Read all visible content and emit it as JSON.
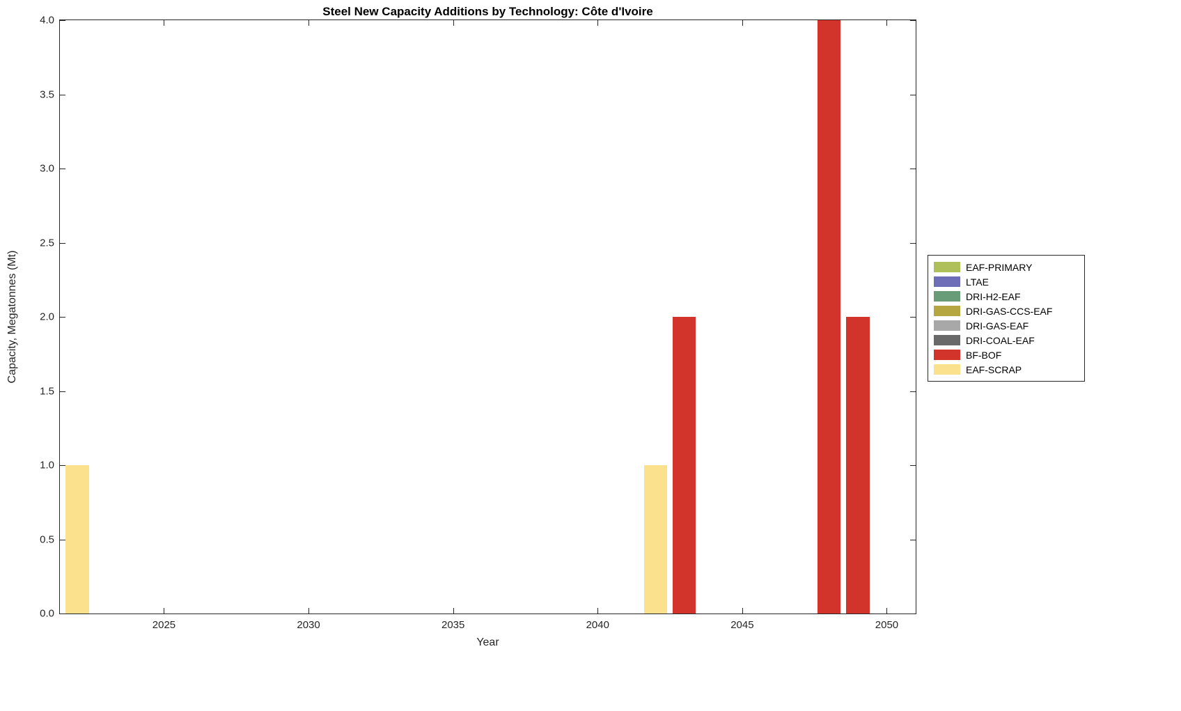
{
  "title": "Steel New Capacity Additions by Technology: Côte d'Ivoire",
  "chart_data": {
    "type": "bar",
    "title": "Steel New Capacity Additions by Technology: Côte d'Ivoire",
    "xlabel": "Year",
    "ylabel": "Capacity, Megatonnes (Mt)",
    "x_range": [
      2021.4,
      2051.0
    ],
    "y_range": [
      0,
      4
    ],
    "x_ticks": [
      2025,
      2030,
      2035,
      2040,
      2045,
      2050
    ],
    "y_ticks": [
      0,
      0.5,
      1,
      1.5,
      2,
      2.5,
      3,
      3.5,
      4
    ],
    "y_tick_labels": [
      "0.0",
      "0.5",
      "1.0",
      "1.5",
      "2.0",
      "2.5",
      "3.0",
      "3.5",
      "4.0"
    ],
    "bar_width_years": 0.8,
    "grid": false,
    "legend_position": "right-outside",
    "legend": [
      {
        "name": "EAF-PRIMARY",
        "color": "#AFC05A"
      },
      {
        "name": "LTAE",
        "color": "#6E6DB8"
      },
      {
        "name": "DRI-H2-EAF",
        "color": "#689B78"
      },
      {
        "name": "DRI-GAS-CCS-EAF",
        "color": "#B5A642"
      },
      {
        "name": "DRI-GAS-EAF",
        "color": "#A8A8A8"
      },
      {
        "name": "DRI-COAL-EAF",
        "color": "#696969"
      },
      {
        "name": "BF-BOF",
        "color": "#D2342C"
      },
      {
        "name": "EAF-SCRAP",
        "color": "#FBE08D"
      }
    ],
    "bars": [
      {
        "year": 2022,
        "series": "EAF-SCRAP",
        "value": 1.0
      },
      {
        "year": 2042,
        "series": "EAF-SCRAP",
        "value": 1.0
      },
      {
        "year": 2043,
        "series": "BF-BOF",
        "value": 2.0
      },
      {
        "year": 2048,
        "series": "BF-BOF",
        "value": 4.0
      },
      {
        "year": 2049,
        "series": "BF-BOF",
        "value": 2.0
      }
    ]
  }
}
